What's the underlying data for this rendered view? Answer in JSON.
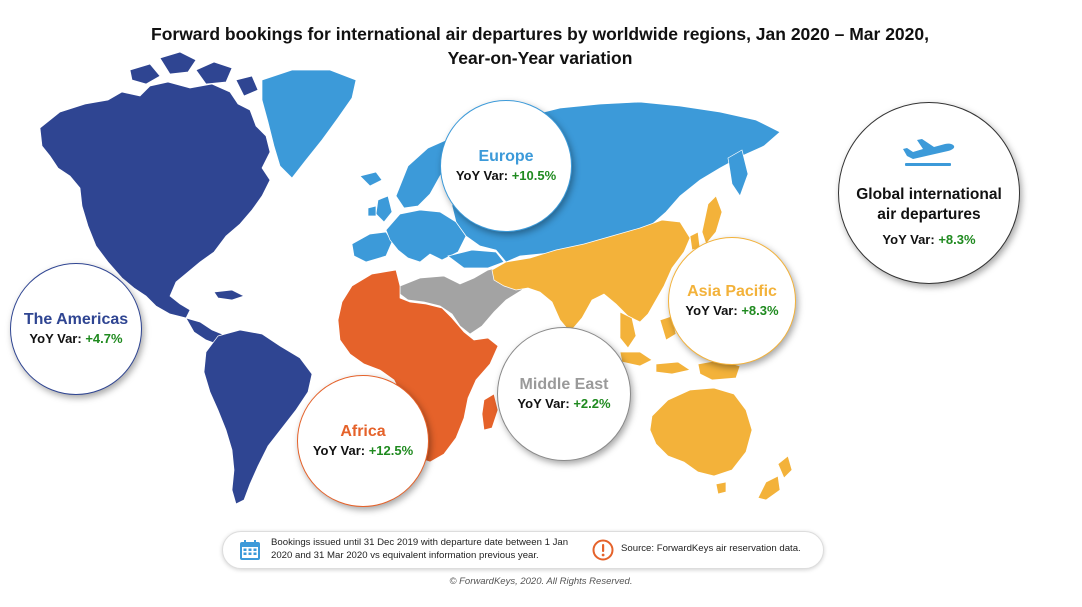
{
  "title": {
    "line1": "Forward bookings for international air departures by worldwide regions, Jan 2020 – Mar 2020,",
    "line2": "Year-on-Year variation"
  },
  "colors": {
    "americas": "#2f4592",
    "europe": "#3c9ad9",
    "asia_pacific": "#f3b23a",
    "middle_east": "#a3a3a3",
    "africa": "#e5622a",
    "positive_value": "#1f8a1f"
  },
  "regions": {
    "americas": {
      "name": "The Americas",
      "yoy_label": "YoY Var:",
      "yoy_value": "+4.7%"
    },
    "europe": {
      "name": "Europe",
      "yoy_label": "YoY Var:",
      "yoy_value": "+10.5%"
    },
    "asia_pacific": {
      "name": "Asia Pacific",
      "yoy_label": "YoY Var:",
      "yoy_value": "+8.3%"
    },
    "middle_east": {
      "name": "Middle East",
      "yoy_label": "YoY Var:",
      "yoy_value": "+2.2%"
    },
    "africa": {
      "name": "Africa",
      "yoy_label": "YoY Var:",
      "yoy_value": "+12.5%"
    }
  },
  "global": {
    "icon": "airplane-takeoff-icon",
    "name_line1": "Global international",
    "name_line2": "air departures",
    "yoy_label": "YoY Var:",
    "yoy_value": "+8.3%"
  },
  "footnote": {
    "calendar_icon": "calendar-icon",
    "note": "Bookings issued until 31 Dec 2019 with departure date between 1 Jan 2020 and 31 Mar 2020 vs equivalent information previous year.",
    "warning_icon": "exclamation-circle-icon",
    "source": "Source: ForwardKeys air reservation data."
  },
  "copyright": "© ForwardKeys, 2020. All Rights Reserved."
}
